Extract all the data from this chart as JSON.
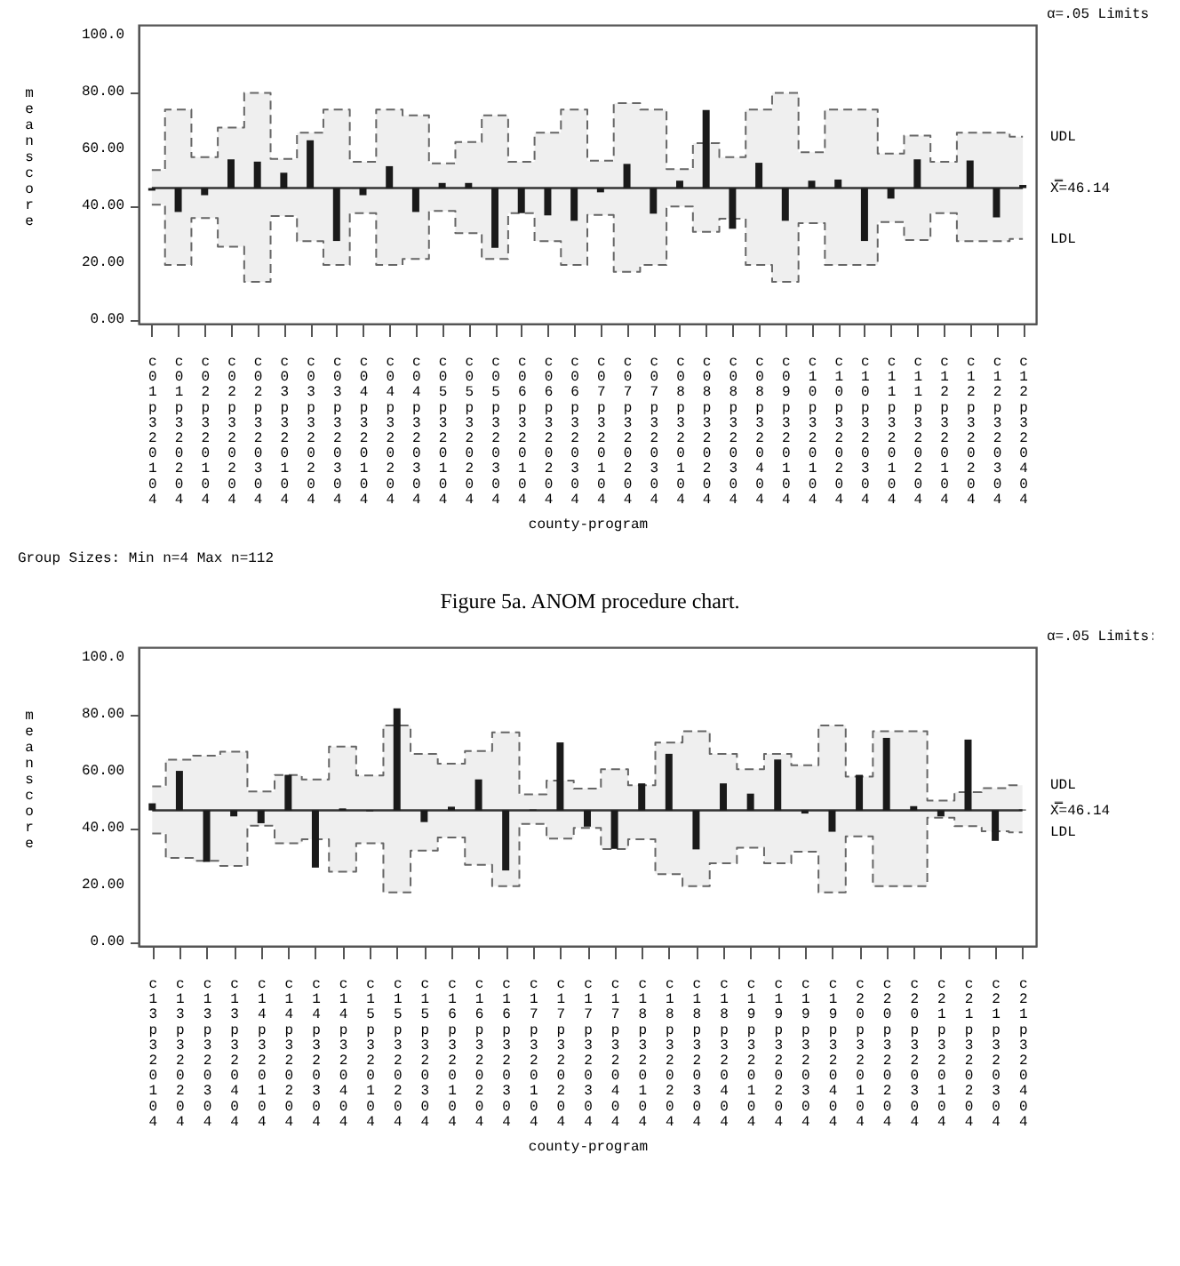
{
  "chart_data": [
    {
      "type": "bar",
      "ylabel": "mean score",
      "xlabel": "county-program",
      "legend_title": "α=.05 Limits",
      "annotations": [
        "Group Sizes:  Min n=4    Max n=112",
        "Figure 5a. ANOM procedure chart."
      ],
      "categories": [
        "c01p320104",
        "c01p320204",
        "c02p320104",
        "c02p320204",
        "c02p320304",
        "c03p320104",
        "c03p320204",
        "c03p320304",
        "c04p320104",
        "c04p320204",
        "c04p320304",
        "c05p320104",
        "c05p320204",
        "c05p320304",
        "c06p320104",
        "c06p320204",
        "c06p320304",
        "c07p320104",
        "c07p320204",
        "c07p320304",
        "c08p320104",
        "c08p320204",
        "c08p320304",
        "c08p320404",
        "c09p320104",
        "c10p320104",
        "c10p320204",
        "c10p320304",
        "c11p320104",
        "c11p320204",
        "c12p320104",
        "c12p320204",
        "c12p320304",
        "c12p320404"
      ],
      "series": [
        {
          "type": "step",
          "name": "X̿=46.14",
          "color": "#333333",
          "values": [
            46.14,
            46.14,
            46.14,
            46.14,
            46.14,
            46.14,
            46.14,
            46.14,
            46.14,
            46.14,
            46.14,
            46.14,
            46.14,
            46.14,
            46.14,
            46.14,
            46.14,
            46.14,
            46.14,
            46.14,
            46.14,
            46.14,
            46.14,
            46.14,
            46.14,
            46.14,
            46.14,
            46.14,
            46.14,
            46.14,
            46.14,
            46.14,
            46.14,
            46.14
          ],
          "upper": [
            52.5,
            73.7,
            57.0,
            67.4,
            79.6,
            56.4,
            65.6,
            73.7,
            55.4,
            73.7,
            71.7,
            54.8,
            62.3,
            71.7,
            55.4,
            65.6,
            73.7,
            55.8,
            76.0,
            73.7,
            52.8,
            61.9,
            57.0,
            73.7,
            79.6,
            58.7,
            73.7,
            73.7,
            58.3,
            64.6,
            55.4,
            65.6,
            65.6,
            64.2
          ],
          "lower": [
            40.3,
            19.1,
            35.6,
            25.5,
            13.2,
            36.3,
            27.5,
            19.1,
            37.3,
            19.1,
            21.2,
            38.1,
            30.3,
            21.2,
            37.3,
            27.5,
            19.1,
            36.7,
            16.7,
            19.1,
            39.7,
            30.8,
            35.4,
            19.1,
            13.2,
            33.8,
            19.1,
            19.1,
            34.2,
            27.9,
            37.3,
            27.5,
            27.5,
            28.3
          ]
        },
        {
          "name": "UDL",
          "type": "step",
          "color": "#666666",
          "line_style": "dashed",
          "values": [
            52.5,
            73.7,
            57.0,
            67.4,
            79.6,
            56.4,
            65.6,
            73.7,
            55.4,
            73.7,
            71.7,
            54.8,
            62.3,
            71.7,
            55.4,
            65.6,
            73.7,
            55.8,
            76.0,
            73.7,
            52.8,
            61.9,
            57.0,
            73.7,
            79.6,
            58.7,
            73.7,
            73.7,
            58.3,
            64.6,
            55.4,
            65.6,
            65.6,
            64.2
          ]
        },
        {
          "name": "LDL",
          "type": "step",
          "color": "#666666",
          "line_style": "dashed",
          "values": [
            40.3,
            19.1,
            35.6,
            25.5,
            13.2,
            36.3,
            27.5,
            19.1,
            37.3,
            19.1,
            21.2,
            38.1,
            30.3,
            21.2,
            37.3,
            27.5,
            19.1,
            36.7,
            16.7,
            19.1,
            39.7,
            30.8,
            35.4,
            19.1,
            13.2,
            33.8,
            19.1,
            19.1,
            34.2,
            27.9,
            37.3,
            27.5,
            27.5,
            28.3
          ]
        },
        {
          "color": "#1a1a1a",
          "base": [
            46.14,
            46.14,
            46.14,
            46.14,
            46.14,
            46.14,
            46.14,
            46.14,
            46.14,
            46.14,
            46.14,
            46.14,
            46.14,
            46.14,
            46.14,
            46.14,
            46.14,
            46.14,
            46.14,
            46.14,
            46.14,
            46.14,
            46.14,
            46.14,
            46.14,
            46.14,
            46.14,
            46.14,
            46.14,
            46.14,
            null,
            46.14,
            46.14,
            46.14
          ],
          "values": [
            -0.9,
            -8.4,
            -2.5,
            10.1,
            9.3,
            5.4,
            16.8,
            -18.6,
            -2.5,
            7.7,
            -8.4,
            1.8,
            1.8,
            -21.0,
            -8.8,
            -9.6,
            -11.5,
            -1.5,
            8.5,
            -9.0,
            2.6,
            27.4,
            -14.3,
            8.9,
            -11.5,
            2.6,
            3.0,
            -18.6,
            -3.7,
            10.1,
            null,
            9.7,
            -10.3,
            1.1
          ]
        }
      ],
      "ylim": [
        -1.5,
        103.5
      ],
      "yticks": [
        {
          "value": 0,
          "label": "0.00"
        },
        {
          "value": 20,
          "label": "20.00"
        },
        {
          "value": 40,
          "label": "40.00"
        },
        {
          "value": 60,
          "label": "60.00"
        },
        {
          "value": 80,
          "label": "80.00"
        },
        {
          "value": 100,
          "label": "100.0"
        }
      ]
    },
    {
      "type": "bar",
      "ylabel": "mean score",
      "xlabel": "county-program",
      "legend_title": "α=.05 Limits:",
      "categories": [
        "c13p320104",
        "c13p320204",
        "c13p320304",
        "c13p320404",
        "c14p320104",
        "c14p320204",
        "c14p320304",
        "c14p320404",
        "c15p320104",
        "c15p320204",
        "c15p320304",
        "c16p320104",
        "c16p320204",
        "c16p320304",
        "c17p320104",
        "c17p320204",
        "c17p320304",
        "c17p320404",
        "c18p320104",
        "c18p320204",
        "c18p320304",
        "c18p320404",
        "c19p320104",
        "c19p320204",
        "c19p320304",
        "c19p320404",
        "c20p320104",
        "c20p320204",
        "c20p320304",
        "c21p320104",
        "c21p320204",
        "c21p320304",
        "c21p320404"
      ],
      "series": [
        {
          "type": "step",
          "name": "X̿=46.14",
          "color": "#333333",
          "values": [
            46.14,
            46.14,
            46.14,
            46.14,
            46.14,
            46.14,
            46.14,
            46.14,
            46.14,
            46.14,
            46.14,
            46.14,
            46.14,
            46.14,
            46.14,
            46.14,
            46.14,
            46.14,
            46.14,
            46.14,
            46.14,
            46.14,
            46.14,
            46.14,
            46.14,
            46.14,
            46.14,
            46.14,
            46.14,
            46.14,
            46.14,
            46.14,
            46.14
          ],
          "upper": [
            54.6,
            64.0,
            65.4,
            66.8,
            52.8,
            58.6,
            57.0,
            68.6,
            58.4,
            76.0,
            66.0,
            62.6,
            67.0,
            73.6,
            51.8,
            56.6,
            53.8,
            60.6,
            55.0,
            70.0,
            74.0,
            66.0,
            60.6,
            66.0,
            62.0,
            76.0,
            58.0,
            74.0,
            74.0,
            49.6,
            52.6,
            54.0,
            55.0
          ],
          "lower": [
            38.0,
            29.4,
            28.4,
            26.6,
            40.8,
            34.6,
            36.0,
            24.6,
            34.6,
            17.3,
            32.0,
            36.6,
            27.0,
            19.5,
            41.4,
            36.2,
            40.0,
            32.6,
            36.0,
            23.7,
            19.5,
            27.6,
            33.0,
            27.6,
            31.6,
            17.3,
            37.0,
            19.5,
            19.5,
            43.6,
            40.6,
            38.8,
            38.4
          ]
        },
        {
          "name": "UDL",
          "type": "step",
          "color": "#666666",
          "line_style": "dashed",
          "values": [
            54.6,
            64.0,
            65.4,
            66.8,
            52.8,
            58.6,
            57.0,
            68.6,
            58.4,
            76.0,
            66.0,
            62.6,
            67.0,
            73.6,
            51.8,
            56.6,
            53.8,
            60.6,
            55.0,
            70.0,
            74.0,
            66.0,
            60.6,
            66.0,
            62.0,
            76.0,
            58.0,
            74.0,
            74.0,
            49.6,
            52.6,
            54.0,
            55.0
          ]
        },
        {
          "name": "LDL",
          "type": "step",
          "color": "#666666",
          "line_style": "dashed",
          "values": [
            38.0,
            29.4,
            28.4,
            26.6,
            40.8,
            34.6,
            36.0,
            24.6,
            34.6,
            17.3,
            32.0,
            36.6,
            27.0,
            19.5,
            41.4,
            36.2,
            40.0,
            32.6,
            36.0,
            23.7,
            19.5,
            27.6,
            33.0,
            27.6,
            31.6,
            17.3,
            37.0,
            19.5,
            19.5,
            43.6,
            40.6,
            38.8,
            38.4
          ]
        },
        {
          "color": "#1a1a1a",
          "base": [
            46.14,
            46.14,
            46.14,
            46.14,
            46.14,
            46.14,
            46.14,
            46.14,
            46.14,
            46.14,
            46.14,
            46.14,
            46.14,
            46.14,
            46.14,
            46.14,
            46.14,
            46.14,
            46.14,
            46.14,
            46.14,
            46.14,
            46.14,
            46.14,
            46.14,
            46.14,
            46.14,
            46.14,
            46.14,
            46.14,
            46.14,
            46.14,
            46.14
          ],
          "values": [
            2.5,
            13.9,
            -18.1,
            -2.1,
            -4.5,
            12.5,
            -20.1,
            0.7,
            -0.3,
            35.9,
            -4.1,
            1.3,
            10.9,
            -21.1,
            0.3,
            23.9,
            -5.7,
            -13.5,
            9.5,
            19.9,
            -13.7,
            9.5,
            5.9,
            17.9,
            -1.1,
            -7.5,
            12.5,
            25.5,
            1.5,
            -2.1,
            24.9,
            -10.7,
            0.3
          ]
        }
      ],
      "ylim": [
        -1.5,
        103.5
      ],
      "yticks": [
        {
          "value": 0,
          "label": "0.00"
        },
        {
          "value": 20,
          "label": "20.00"
        },
        {
          "value": 40,
          "label": "40.00"
        },
        {
          "value": 60,
          "label": "60.00"
        },
        {
          "value": 80,
          "label": "80.00"
        },
        {
          "value": 100,
          "label": "100.0"
        }
      ]
    }
  ]
}
